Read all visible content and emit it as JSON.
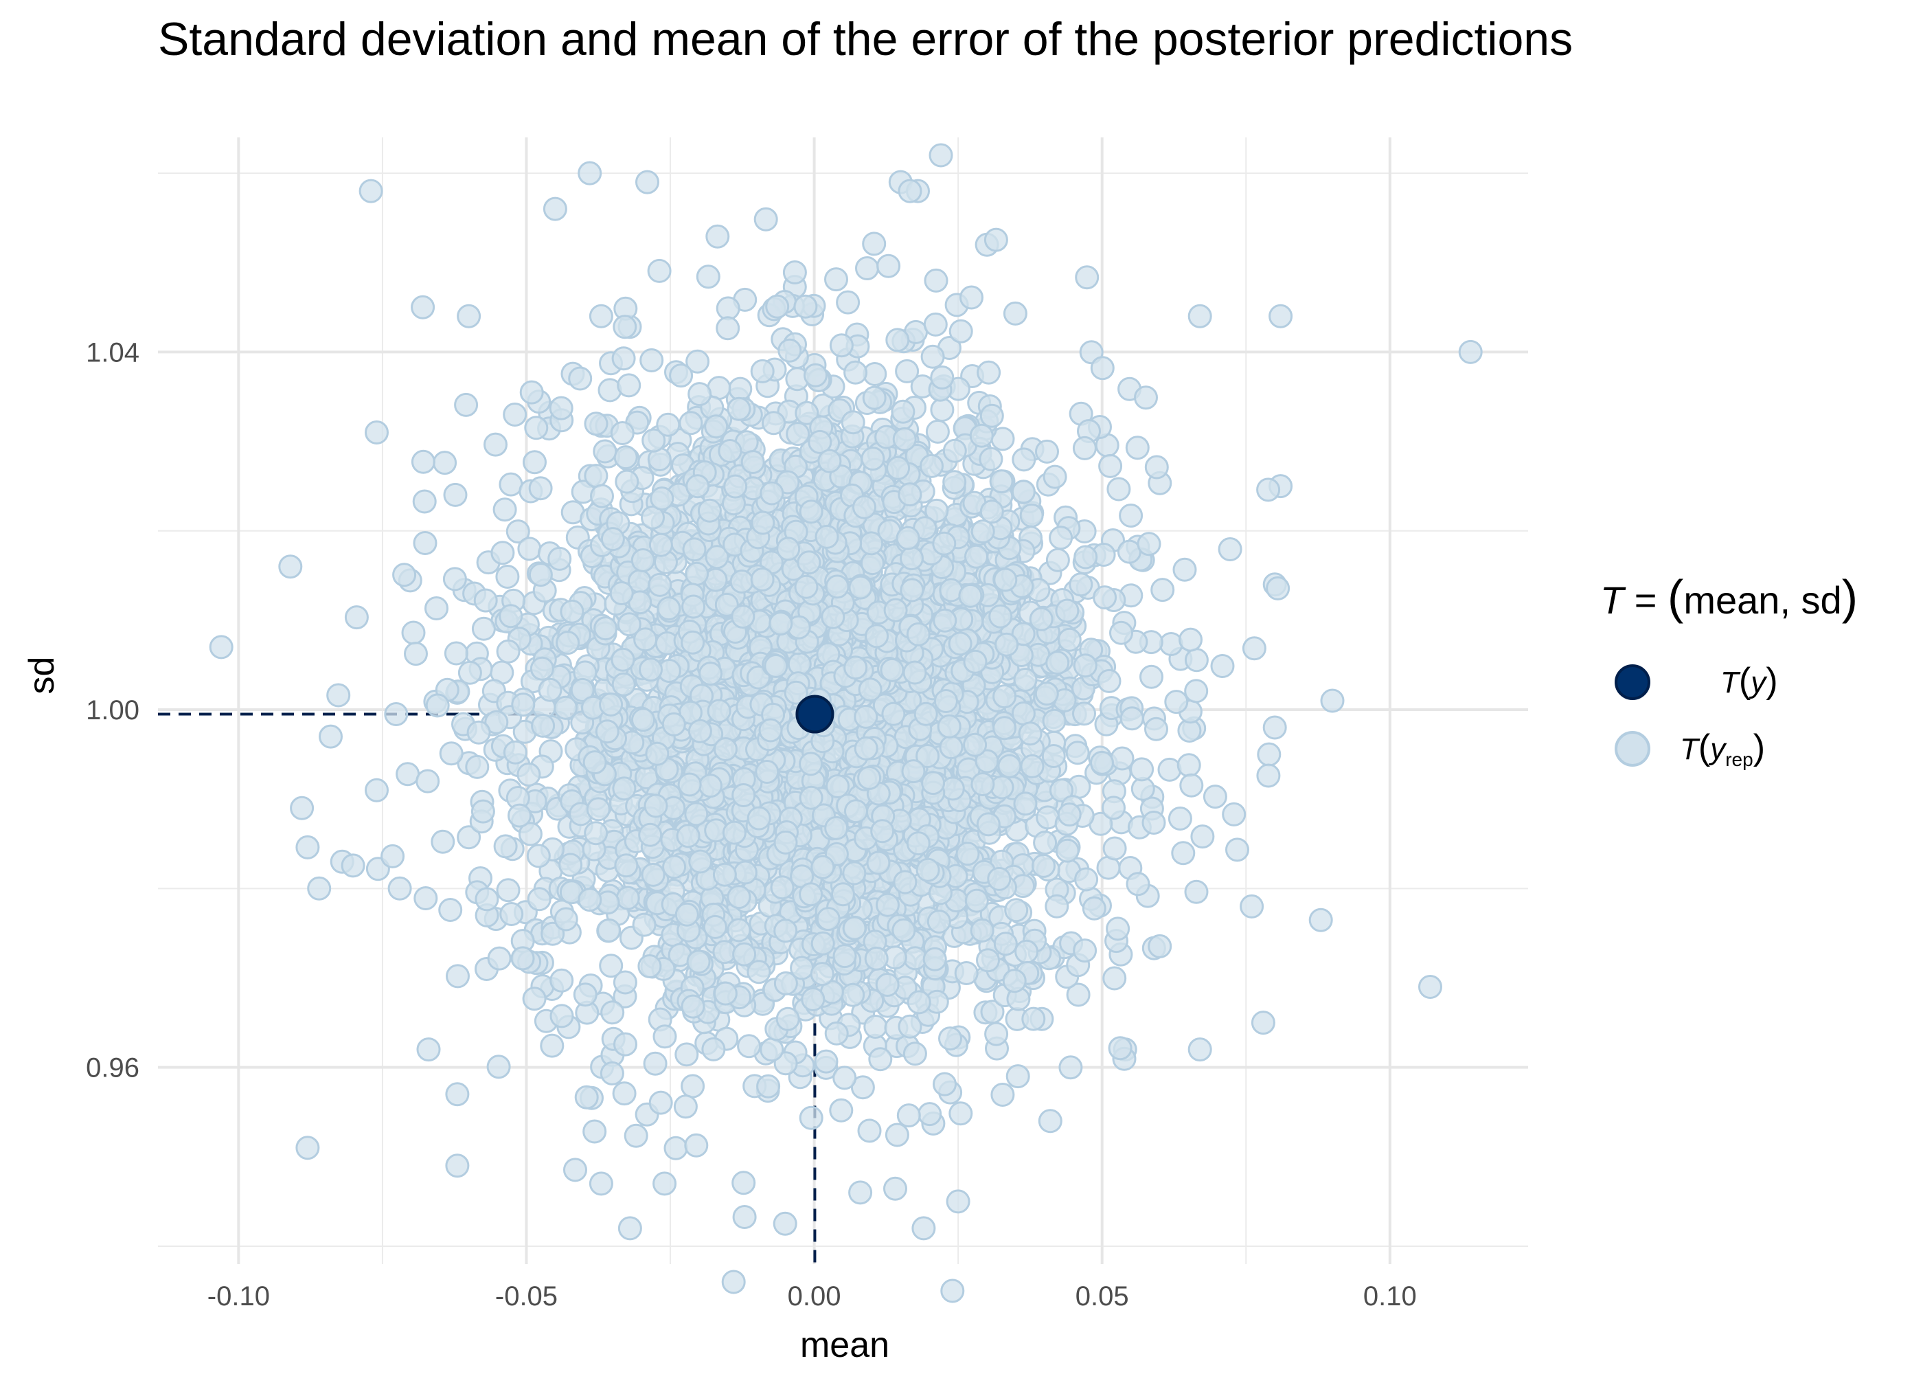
{
  "chart_data": {
    "type": "scatter",
    "title": "Standard deviation and mean of the error of the posterior predictions",
    "xlabel": "mean",
    "ylabel": "sd",
    "xlim": [
      -0.114,
      0.124
    ],
    "ylim": [
      0.938,
      1.064
    ],
    "x_ticks": [
      {
        "value": -0.1,
        "label": "-0.10"
      },
      {
        "value": -0.05,
        "label": "-0.05"
      },
      {
        "value": 0.0,
        "label": "0.00"
      },
      {
        "value": 0.05,
        "label": "0.05"
      },
      {
        "value": 0.1,
        "label": "0.10"
      }
    ],
    "y_ticks": [
      {
        "value": 0.96,
        "label": "0.96"
      },
      {
        "value": 1.0,
        "label": "1.00"
      },
      {
        "value": 1.04,
        "label": "1.04"
      }
    ],
    "grid": true,
    "legend": {
      "title_prefix": "T",
      "title_eq": " = ",
      "title_lparen": "(",
      "title_text": "mean, sd",
      "title_rparen": ")",
      "position": "right",
      "items": [
        {
          "symbol": "T",
          "lparen": "(",
          "var": "y",
          "sub": "",
          "rparen": ")",
          "color": "#00306b"
        },
        {
          "symbol": "T",
          "lparen": "(",
          "var": "y",
          "sub": "rep",
          "rparen": ")",
          "color": "#d1e1ec"
        }
      ]
    },
    "series": [
      {
        "name": "T(y)",
        "color": "#00306b",
        "stroke": "#011f4b",
        "points": [
          {
            "x": 0.0001,
            "y": 0.9995
          }
        ]
      },
      {
        "name": "T(y_rep)",
        "color": "#d1e1ec",
        "stroke": "#b3cde0",
        "count": 4000,
        "x_mean": 0.0,
        "x_sd": 0.025,
        "y_mean": 1.0,
        "y_sd": 0.0175,
        "points": [
          {
            "x": 0.114,
            "y": 1.04
          },
          {
            "x": -0.103,
            "y": 1.007
          },
          {
            "x": 0.107,
            "y": 0.969
          },
          {
            "x": 0.09,
            "y": 1.001
          },
          {
            "x": -0.091,
            "y": 1.016
          },
          {
            "x": -0.089,
            "y": 0.989
          },
          {
            "x": -0.086,
            "y": 0.98
          },
          {
            "x": -0.084,
            "y": 0.997
          },
          {
            "x": -0.082,
            "y": 0.983
          },
          {
            "x": -0.077,
            "y": 1.058
          },
          {
            "x": -0.076,
            "y": 1.031
          },
          {
            "x": -0.076,
            "y": 0.991
          },
          {
            "x": -0.072,
            "y": 0.98
          },
          {
            "x": -0.068,
            "y": 1.045
          },
          {
            "x": -0.067,
            "y": 0.962
          },
          {
            "x": -0.06,
            "y": 1.044
          },
          {
            "x": -0.062,
            "y": 0.949
          },
          {
            "x": -0.062,
            "y": 0.957
          },
          {
            "x": -0.045,
            "y": 1.056
          },
          {
            "x": -0.039,
            "y": 1.06
          },
          {
            "x": -0.029,
            "y": 1.059
          },
          {
            "x": -0.032,
            "y": 0.942
          },
          {
            "x": -0.037,
            "y": 0.947
          },
          {
            "x": -0.026,
            "y": 0.947
          },
          {
            "x": -0.014,
            "y": 0.936
          },
          {
            "x": 0.022,
            "y": 1.062
          },
          {
            "x": 0.015,
            "y": 1.059
          },
          {
            "x": 0.018,
            "y": 1.058
          },
          {
            "x": 0.024,
            "y": 0.935
          },
          {
            "x": 0.019,
            "y": 0.942
          },
          {
            "x": 0.025,
            "y": 0.945
          },
          {
            "x": 0.008,
            "y": 0.946
          },
          {
            "x": 0.03,
            "y": 1.052
          },
          {
            "x": 0.067,
            "y": 1.044
          },
          {
            "x": 0.081,
            "y": 1.044
          },
          {
            "x": 0.081,
            "y": 1.025
          },
          {
            "x": 0.08,
            "y": 1.014
          },
          {
            "x": 0.078,
            "y": 0.965
          },
          {
            "x": 0.076,
            "y": 0.978
          },
          {
            "x": 0.079,
            "y": 0.995
          },
          {
            "x": 0.08,
            "y": 0.998
          },
          {
            "x": 0.067,
            "y": 0.962
          },
          {
            "x": 0.041,
            "y": 0.954
          },
          {
            "x": -0.037,
            "y": 1.044
          },
          {
            "x": -0.052,
            "y": 1.033
          },
          {
            "x": 0.054,
            "y": 0.962
          }
        ]
      }
    ]
  }
}
